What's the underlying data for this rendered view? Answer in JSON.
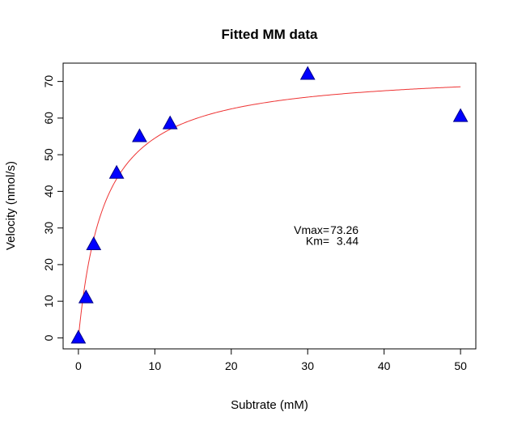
{
  "chart_data": {
    "type": "scatter",
    "title": "Fitted MM data",
    "xlabel": "Subtrate (mM)",
    "ylabel": "Velocity (nmol/s)",
    "xlim": [
      -2,
      52
    ],
    "ylim": [
      -3,
      75
    ],
    "x_ticks": [
      0,
      10,
      20,
      30,
      40,
      50
    ],
    "y_ticks": [
      0,
      10,
      20,
      30,
      40,
      50,
      60,
      70
    ],
    "grid": false,
    "series": [
      {
        "kind": "points",
        "marker": "triangle",
        "color": "#0000ff",
        "x": [
          0,
          1,
          2,
          5,
          8,
          12,
          30,
          50
        ],
        "y": [
          0,
          11,
          25.5,
          45,
          55,
          58.5,
          72,
          60.5
        ]
      },
      {
        "kind": "fitted-curve",
        "color": "#ee3333",
        "model": "michaelis-menten",
        "x_range": [
          0,
          50
        ],
        "vmax": 73.26,
        "km": 3.44
      }
    ],
    "annotations": [
      {
        "name": "Vmax=",
        "value": "73.26",
        "at": [
          32,
          29.5
        ]
      },
      {
        "name": "Km=",
        "value": "3.44",
        "at": [
          32,
          26.5
        ]
      }
    ]
  }
}
